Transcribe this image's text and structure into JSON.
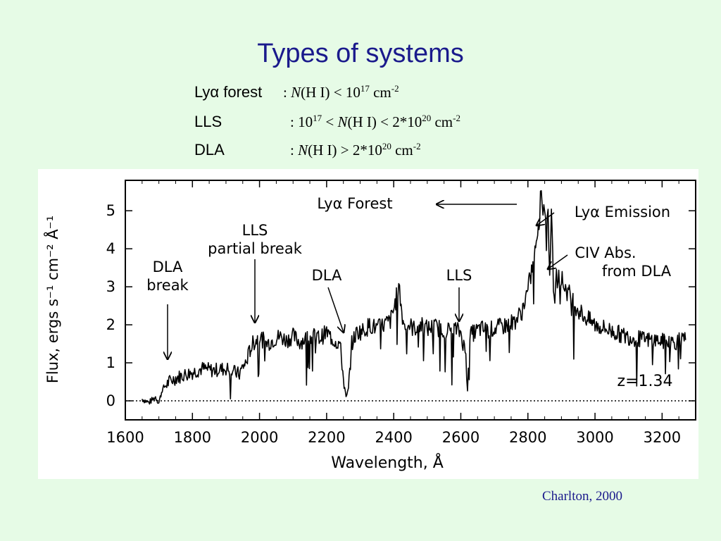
{
  "slide": {
    "title": "Types of systems",
    "credit": "Charlton, 2000",
    "definitions": [
      {
        "label": "Lyα forest",
        "cond_parts": [
          ": ",
          "N",
          "(H I) < 10",
          "17",
          " cm",
          "-2"
        ]
      },
      {
        "label": "LLS",
        "cond_parts": [
          ": 10",
          "17",
          " <  ",
          "N",
          "(H I)  < 2*10",
          "20",
          " cm",
          "-2"
        ]
      },
      {
        "label": "DLA",
        "cond_parts": [
          ":  ",
          "N",
          "(H I) > 2*10",
          "20",
          " cm",
          "-2"
        ]
      }
    ]
  },
  "chart_data": {
    "type": "line",
    "title": "",
    "xlabel": "Wavelength, Å",
    "ylabel": "Flux, ergs s⁻¹ cm⁻² Å⁻¹",
    "xlim": [
      1600,
      3300
    ],
    "ylim": [
      -0.5,
      5.8
    ],
    "xticks": [
      1600,
      1800,
      2000,
      2200,
      2400,
      2600,
      2800,
      3000,
      3200
    ],
    "yticks": [
      0,
      1,
      2,
      3,
      4,
      5
    ],
    "grid": false,
    "zero_line": "dotted",
    "series": [
      {
        "x": [
          1650,
          1670,
          1690,
          1700,
          1710,
          1730,
          1750,
          1780,
          1800,
          1830,
          1860,
          1900,
          1940,
          1950,
          1960,
          1970,
          1980,
          1990,
          2000,
          2020,
          2040,
          2060,
          2080,
          2100,
          2120,
          2140,
          2160,
          2180,
          2200,
          2220,
          2240,
          2250,
          2258,
          2265,
          2275,
          2290,
          2310,
          2330,
          2350,
          2370,
          2390,
          2400,
          2410,
          2415,
          2420,
          2430,
          2445,
          2460,
          2480,
          2500,
          2520,
          2540,
          2560,
          2580,
          2600,
          2615,
          2620,
          2625,
          2640,
          2660,
          2680,
          2700,
          2720,
          2740,
          2760,
          2780,
          2800,
          2815,
          2825,
          2835,
          2840,
          2845,
          2850,
          2855,
          2860,
          2865,
          2870,
          2878,
          2885,
          2890,
          2900,
          2910,
          2930,
          2950,
          2970,
          3000,
          3030,
          3060,
          3090,
          3120,
          3150,
          3180,
          3210,
          3240,
          3270
        ],
        "y": [
          0.05,
          -0.05,
          0.1,
          -0.05,
          0.3,
          0.5,
          0.6,
          0.7,
          0.75,
          0.85,
          0.8,
          0.85,
          0.7,
          0.9,
          1.0,
          1.3,
          1.5,
          1.6,
          1.7,
          1.5,
          1.6,
          1.7,
          1.6,
          1.7,
          1.55,
          1.65,
          1.7,
          1.65,
          1.8,
          1.6,
          1.5,
          0.6,
          0.05,
          0.3,
          1.5,
          1.8,
          1.85,
          2.0,
          1.9,
          2.0,
          2.1,
          2.4,
          2.8,
          3.2,
          2.6,
          2.0,
          2.0,
          1.9,
          2.0,
          1.9,
          1.95,
          1.9,
          1.85,
          1.9,
          1.8,
          1.2,
          0.3,
          1.7,
          1.8,
          1.9,
          1.85,
          1.9,
          1.95,
          2.0,
          2.1,
          2.3,
          2.9,
          3.6,
          4.3,
          4.9,
          5.6,
          5.0,
          5.2,
          4.2,
          5.0,
          3.5,
          4.8,
          2.6,
          3.2,
          3.3,
          3.2,
          3.0,
          2.7,
          2.4,
          2.2,
          2.0,
          1.9,
          1.8,
          1.7,
          1.65,
          1.6,
          1.6,
          1.55,
          1.55,
          1.6
        ]
      }
    ],
    "annotations": [
      {
        "text": "Lyα Forest"
      },
      {
        "text": "Lyα Emission"
      },
      {
        "text": "LLS"
      },
      {
        "text": "partial break"
      },
      {
        "text": "DLA"
      },
      {
        "text": "break"
      },
      {
        "text": "DLA"
      },
      {
        "text": "LLS"
      },
      {
        "text": "CIV Abs."
      },
      {
        "text": "from DLA"
      },
      {
        "text": "z=1.34"
      }
    ]
  }
}
